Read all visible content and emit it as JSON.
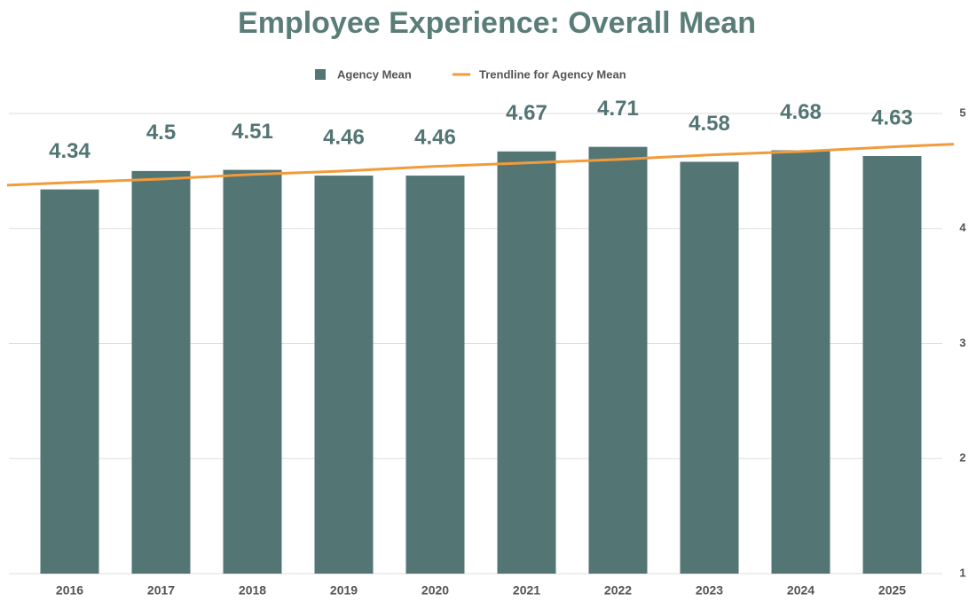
{
  "chart_data": {
    "type": "bar",
    "title": "Employee Experience: Overall Mean",
    "categories": [
      "2016",
      "2017",
      "2018",
      "2019",
      "2020",
      "2021",
      "2022",
      "2023",
      "2024",
      "2025"
    ],
    "series": [
      {
        "name": "Agency Mean",
        "color": "#537574",
        "values": [
          4.34,
          4.5,
          4.51,
          4.46,
          4.46,
          4.67,
          4.71,
          4.58,
          4.68,
          4.63
        ]
      },
      {
        "name": "Trendline for Agency Mean",
        "color": "#f29b3a",
        "type": "line",
        "values": [
          4.4,
          4.43,
          4.47,
          4.5,
          4.54,
          4.57,
          4.6,
          4.64,
          4.67,
          4.71
        ]
      }
    ],
    "ylim": [
      1,
      5
    ],
    "yticks": [
      1,
      2,
      3,
      4,
      5
    ],
    "grid": true,
    "legend": "top"
  }
}
